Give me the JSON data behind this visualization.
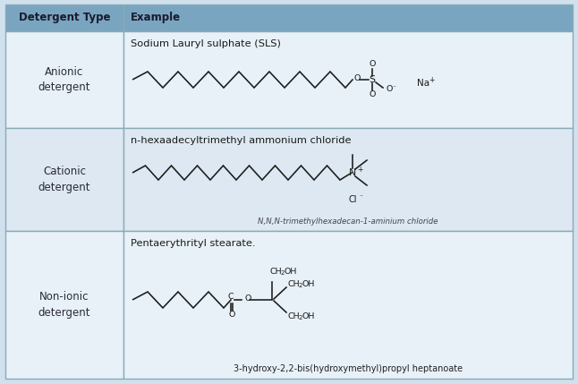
{
  "header_bg": "#7aa5c0",
  "header_text_color": "#1a1a2e",
  "cell_bg_row1": "#e8f1f8",
  "cell_bg_row2": "#dde8f2",
  "cell_bg_row3": "#e8f1f8",
  "border_color": "#8aabb8",
  "outer_bg": "#d0e0ec",
  "col1_header": "Detergent Type",
  "col2_header": "Example",
  "row1_type": "Anionic\ndetergent",
  "row2_type": "Cationic\ndetergent",
  "row3_type": "Non-ionic\ndetergent",
  "row1_name": "Sodium Lauryl sulphate (SLS)",
  "row2_name": "n-hexaadecyltrimethyl ammonium chloride",
  "row3_name": "Pentaerythrityl stearate.",
  "row2_subtext": "N,N,N-trimethylhexadecan-1-aminium chloride",
  "row3_subtext": "3-hydroxy-2,2-bis(hydroxymethyl)propyl heptanoate",
  "fig_width": 6.46,
  "fig_height": 4.29,
  "dpi": 100
}
